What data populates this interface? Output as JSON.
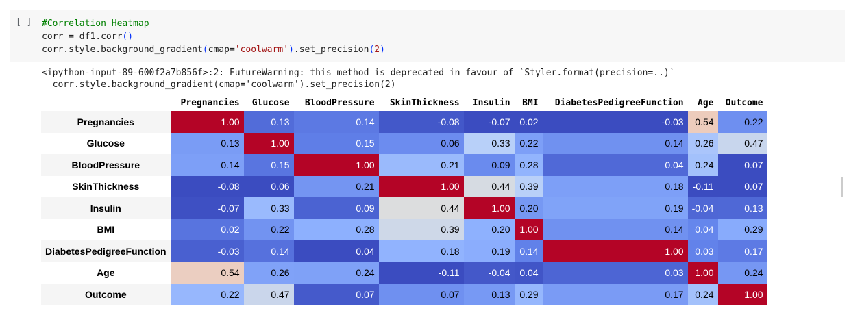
{
  "cell": {
    "run_indicator": "[ ]",
    "code_lines": [
      {
        "comment": "#Correlation Heatmap"
      },
      {
        "a": "corr = df1.corr",
        "p": "()"
      },
      {
        "a": "corr.style.background_gradient",
        "p1": "(",
        "b": "cmap=",
        "s": "'coolwarm'",
        "p2": ")",
        "c": ".set_precision",
        "p3": "(",
        "d": "2",
        "p4": ")"
      }
    ]
  },
  "output": {
    "warning_lines": [
      "<ipython-input-89-600f2a7b856f>:2: FutureWarning: this method is deprecated in favour of `Styler.format(precision=..)`",
      "  corr.style.background_gradient(cmap='coolwarm').set_precision(2)"
    ]
  },
  "chart_data": {
    "type": "heatmap",
    "colormap": "coolwarm",
    "columns": [
      "Pregnancies",
      "Glucose",
      "BloodPressure",
      "SkinThickness",
      "Insulin",
      "BMI",
      "DiabetesPedigreeFunction",
      "Age",
      "Outcome"
    ],
    "rows": [
      {
        "label": "Pregnancies",
        "values": [
          "1.00",
          "0.13",
          "0.14",
          "-0.08",
          "-0.07",
          "0.02",
          "-0.03",
          "0.54",
          "0.22"
        ]
      },
      {
        "label": "Glucose",
        "values": [
          "0.13",
          "1.00",
          "0.15",
          "0.06",
          "0.33",
          "0.22",
          "0.14",
          "0.26",
          "0.47"
        ]
      },
      {
        "label": "BloodPressure",
        "values": [
          "0.14",
          "0.15",
          "1.00",
          "0.21",
          "0.09",
          "0.28",
          "0.04",
          "0.24",
          "0.07"
        ]
      },
      {
        "label": "SkinThickness",
        "values": [
          "-0.08",
          "0.06",
          "0.21",
          "1.00",
          "0.44",
          "0.39",
          "0.18",
          "-0.11",
          "0.07"
        ]
      },
      {
        "label": "Insulin",
        "values": [
          "-0.07",
          "0.33",
          "0.09",
          "0.44",
          "1.00",
          "0.20",
          "0.19",
          "-0.04",
          "0.13"
        ]
      },
      {
        "label": "BMI",
        "values": [
          "0.02",
          "0.22",
          "0.28",
          "0.39",
          "0.20",
          "1.00",
          "0.14",
          "0.04",
          "0.29"
        ]
      },
      {
        "label": "DiabetesPedigreeFunction",
        "values": [
          "-0.03",
          "0.14",
          "0.04",
          "0.18",
          "0.19",
          "0.14",
          "1.00",
          "0.03",
          "0.17"
        ]
      },
      {
        "label": "Age",
        "values": [
          "0.54",
          "0.26",
          "0.24",
          "-0.11",
          "-0.04",
          "0.04",
          "0.03",
          "1.00",
          "0.24"
        ]
      },
      {
        "label": "Outcome",
        "values": [
          "0.22",
          "0.47",
          "0.07",
          "0.07",
          "0.13",
          "0.29",
          "0.17",
          "0.24",
          "1.00"
        ]
      }
    ]
  }
}
